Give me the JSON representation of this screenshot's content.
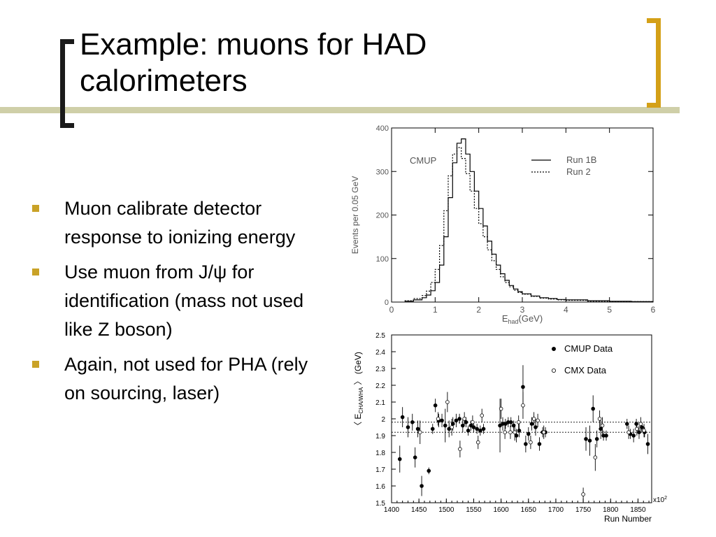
{
  "slide": {
    "title_line1": "Example: muons for HAD",
    "title_line2": "calorimeters",
    "bullets": [
      "Muon calibrate detector response to ionizing energy",
      "Use muon from J/ψ for identification (mass not used like Z boson)",
      "Again, not used for PHA (rely on sourcing, laser)"
    ],
    "colors": {
      "bullet": "#c9a227",
      "right_bracket": "#d4a017",
      "band": "#cfcfa8",
      "left_bracket": "#1a1a1a"
    }
  },
  "chart_data": [
    {
      "type": "line",
      "title": "",
      "annotation": "CMUP",
      "xlabel_main": "E",
      "xlabel_sub": "had",
      "xlabel_unit": "(GeV)",
      "ylabel": "Events per 0.05 GeV",
      "xlim": [
        0,
        6
      ],
      "ylim": [
        0,
        400
      ],
      "xticks": [
        0,
        1,
        2,
        3,
        4,
        5,
        6
      ],
      "yticks": [
        0,
        100,
        200,
        300,
        400
      ],
      "legend_position": "top-right",
      "grid": false,
      "series": [
        {
          "name": "Run 1B",
          "style": "solid",
          "x": [
            0.3,
            0.5,
            0.7,
            0.8,
            0.9,
            1.0,
            1.1,
            1.2,
            1.3,
            1.4,
            1.5,
            1.6,
            1.7,
            1.8,
            1.9,
            2.0,
            2.1,
            2.2,
            2.3,
            2.4,
            2.5,
            2.6,
            2.7,
            2.8,
            2.9,
            3.0,
            3.2,
            3.4,
            3.6,
            3.8,
            4.0,
            4.5,
            5.0,
            5.5,
            6.0
          ],
          "values": [
            2,
            5,
            10,
            16,
            26,
            45,
            85,
            150,
            240,
            320,
            365,
            375,
            340,
            300,
            255,
            215,
            175,
            140,
            110,
            85,
            65,
            50,
            38,
            30,
            24,
            19,
            14,
            10,
            8,
            6,
            5,
            3,
            2,
            1,
            0
          ]
        },
        {
          "name": "Run 2",
          "style": "dashed",
          "x": [
            0.3,
            0.5,
            0.7,
            0.8,
            0.9,
            1.0,
            1.1,
            1.2,
            1.3,
            1.4,
            1.5,
            1.6,
            1.7,
            1.8,
            1.9,
            2.0,
            2.1,
            2.2,
            2.3,
            2.4,
            2.5,
            2.6,
            2.7,
            2.8,
            2.9,
            3.0,
            3.2,
            3.4,
            3.6,
            3.8,
            4.0,
            4.5,
            5.0,
            5.5,
            6.0
          ],
          "values": [
            3,
            8,
            15,
            25,
            45,
            75,
            130,
            210,
            290,
            340,
            355,
            330,
            295,
            255,
            215,
            180,
            150,
            120,
            95,
            75,
            58,
            45,
            35,
            27,
            22,
            18,
            13,
            9,
            7,
            5,
            4,
            2,
            1,
            1,
            0
          ]
        }
      ]
    },
    {
      "type": "scatter",
      "title": "",
      "xlabel": "Run Number",
      "ylabel": "〈 E",
      "ylabel_sub": "CHA/WHA",
      "ylabel_unit": "〉 (GeV)",
      "x_multiplier": "x10",
      "x_multiplier_exp": "2",
      "xlim": [
        1400,
        1875
      ],
      "ylim": [
        1.5,
        2.5
      ],
      "xticks": [
        1400,
        1450,
        1500,
        1550,
        1600,
        1650,
        1700,
        1750,
        1800,
        1850
      ],
      "yticks": [
        1.5,
        1.6,
        1.7,
        1.8,
        1.9,
        2.0,
        2.1,
        2.2,
        2.3,
        2.4,
        2.5
      ],
      "reference_lines": [
        1.92,
        1.98
      ],
      "legend_position": "top-right",
      "grid": false,
      "series": [
        {
          "name": "CMUP Data",
          "marker": "filled-circle",
          "points": [
            {
              "x": 1415,
              "y": 1.76,
              "err": 0.08
            },
            {
              "x": 1420,
              "y": 2.01,
              "err": 0.06
            },
            {
              "x": 1430,
              "y": 1.95,
              "err": 0.06
            },
            {
              "x": 1438,
              "y": 1.98,
              "err": 0.05
            },
            {
              "x": 1443,
              "y": 1.77,
              "err": 0.06
            },
            {
              "x": 1448,
              "y": 1.94,
              "err": 0.05
            },
            {
              "x": 1455,
              "y": 1.6,
              "err": 0.06
            },
            {
              "x": 1468,
              "y": 1.69,
              "err": 0.02
            },
            {
              "x": 1475,
              "y": 1.94,
              "err": 0.03
            },
            {
              "x": 1480,
              "y": 2.08,
              "err": 0.04
            },
            {
              "x": 1486,
              "y": 1.99,
              "err": 0.04
            },
            {
              "x": 1492,
              "y": 1.99,
              "err": 0.04
            },
            {
              "x": 1498,
              "y": 1.96,
              "err": 0.1
            },
            {
              "x": 1505,
              "y": 1.94,
              "err": 0.05
            },
            {
              "x": 1512,
              "y": 1.97,
              "err": 0.04
            },
            {
              "x": 1518,
              "y": 1.99,
              "err": 0.04
            },
            {
              "x": 1524,
              "y": 2.0,
              "err": 0.03
            },
            {
              "x": 1530,
              "y": 1.96,
              "err": 0.04
            },
            {
              "x": 1536,
              "y": 1.98,
              "err": 0.03
            },
            {
              "x": 1540,
              "y": 1.93,
              "err": 0.03
            },
            {
              "x": 1545,
              "y": 1.96,
              "err": 0.03
            },
            {
              "x": 1550,
              "y": 1.95,
              "err": 0.03
            },
            {
              "x": 1556,
              "y": 1.94,
              "err": 0.03
            },
            {
              "x": 1562,
              "y": 1.93,
              "err": 0.03
            },
            {
              "x": 1568,
              "y": 1.94,
              "err": 0.03
            },
            {
              "x": 1598,
              "y": 1.96,
              "err": 0.16
            },
            {
              "x": 1603,
              "y": 1.97,
              "err": 0.04
            },
            {
              "x": 1608,
              "y": 1.97,
              "err": 0.03
            },
            {
              "x": 1613,
              "y": 1.98,
              "err": 0.03
            },
            {
              "x": 1618,
              "y": 1.98,
              "err": 0.03
            },
            {
              "x": 1623,
              "y": 1.96,
              "err": 0.03
            },
            {
              "x": 1628,
              "y": 1.9,
              "err": 0.04
            },
            {
              "x": 1633,
              "y": 1.93,
              "err": 0.04
            },
            {
              "x": 1640,
              "y": 2.19,
              "err": 0.13
            },
            {
              "x": 1645,
              "y": 1.85,
              "err": 0.05
            },
            {
              "x": 1650,
              "y": 1.91,
              "err": 0.04
            },
            {
              "x": 1656,
              "y": 1.97,
              "err": 0.04
            },
            {
              "x": 1663,
              "y": 1.95,
              "err": 0.05
            },
            {
              "x": 1670,
              "y": 1.85,
              "err": 0.04
            },
            {
              "x": 1676,
              "y": 1.92,
              "err": 0.03
            },
            {
              "x": 1681,
              "y": 1.92,
              "err": 0.03
            },
            {
              "x": 1755,
              "y": 1.88,
              "err": 0.07
            },
            {
              "x": 1762,
              "y": 1.87,
              "err": 0.09
            },
            {
              "x": 1768,
              "y": 2.06,
              "err": 0.08
            },
            {
              "x": 1775,
              "y": 1.88,
              "err": 0.05
            },
            {
              "x": 1782,
              "y": 1.94,
              "err": 0.06
            },
            {
              "x": 1787,
              "y": 1.9,
              "err": 0.03
            },
            {
              "x": 1792,
              "y": 1.9,
              "err": 0.03
            },
            {
              "x": 1830,
              "y": 1.97,
              "err": 0.03
            },
            {
              "x": 1836,
              "y": 1.91,
              "err": 0.03
            },
            {
              "x": 1842,
              "y": 1.9,
              "err": 0.04
            },
            {
              "x": 1847,
              "y": 1.97,
              "err": 0.03
            },
            {
              "x": 1852,
              "y": 1.92,
              "err": 0.04
            },
            {
              "x": 1857,
              "y": 1.95,
              "err": 0.03
            },
            {
              "x": 1862,
              "y": 1.92,
              "err": 0.03
            },
            {
              "x": 1868,
              "y": 1.85,
              "err": 0.06
            }
          ]
        },
        {
          "name": "CMX Data",
          "marker": "open-circle",
          "points": [
            {
              "x": 1452,
              "y": 1.92,
              "err": 0.07
            },
            {
              "x": 1485,
              "y": 2.0,
              "err": 0.04
            },
            {
              "x": 1502,
              "y": 2.1,
              "err": 0.06
            },
            {
              "x": 1510,
              "y": 1.95,
              "err": 0.05
            },
            {
              "x": 1525,
              "y": 1.82,
              "err": 0.05
            },
            {
              "x": 1533,
              "y": 2.0,
              "err": 0.04
            },
            {
              "x": 1548,
              "y": 1.98,
              "err": 0.04
            },
            {
              "x": 1558,
              "y": 1.86,
              "err": 0.04
            },
            {
              "x": 1565,
              "y": 2.02,
              "err": 0.04
            },
            {
              "x": 1600,
              "y": 2.06,
              "err": 0.06
            },
            {
              "x": 1607,
              "y": 1.92,
              "err": 0.04
            },
            {
              "x": 1617,
              "y": 1.92,
              "err": 0.04
            },
            {
              "x": 1625,
              "y": 1.92,
              "err": 0.05
            },
            {
              "x": 1632,
              "y": 1.98,
              "err": 0.04
            },
            {
              "x": 1640,
              "y": 2.08,
              "err": 0.08
            },
            {
              "x": 1654,
              "y": 1.86,
              "err": 0.04
            },
            {
              "x": 1660,
              "y": 2.0,
              "err": 0.04
            },
            {
              "x": 1667,
              "y": 1.99,
              "err": 0.04
            },
            {
              "x": 1678,
              "y": 1.92,
              "err": 0.04
            },
            {
              "x": 1750,
              "y": 1.55,
              "err": 0.04
            },
            {
              "x": 1772,
              "y": 1.77,
              "err": 0.08
            },
            {
              "x": 1780,
              "y": 2.0,
              "err": 0.05
            },
            {
              "x": 1785,
              "y": 1.96,
              "err": 0.05
            },
            {
              "x": 1833,
              "y": 1.92,
              "err": 0.04
            },
            {
              "x": 1848,
              "y": 1.94,
              "err": 0.04
            },
            {
              "x": 1855,
              "y": 1.97,
              "err": 0.04
            },
            {
              "x": 1861,
              "y": 1.93,
              "err": 0.04
            }
          ]
        }
      ]
    }
  ]
}
